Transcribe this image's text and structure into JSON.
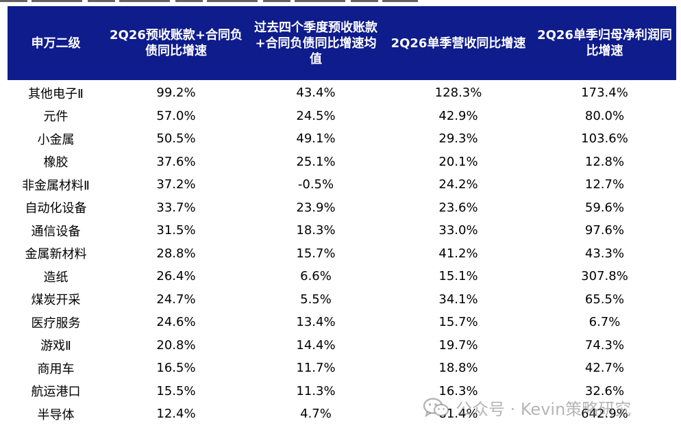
{
  "table": {
    "headers": [
      "申万二级",
      "2Q26预收账款+合同负债同比增速",
      "过去四个季度预收账款+合同负债同比增速均值",
      "2Q26单季营收同比增速",
      "2Q26单季归母净利润同比增速"
    ],
    "rows": [
      [
        "其他电子Ⅱ",
        "99.2%",
        "43.4%",
        "128.3%",
        "173.4%"
      ],
      [
        "元件",
        "57.0%",
        "24.5%",
        "42.9%",
        "80.0%"
      ],
      [
        "小金属",
        "50.5%",
        "49.1%",
        "29.3%",
        "103.6%"
      ],
      [
        "橡胶",
        "37.6%",
        "25.1%",
        "20.1%",
        "12.8%"
      ],
      [
        "非金属材料Ⅱ",
        "37.2%",
        "-0.5%",
        "24.2%",
        "12.7%"
      ],
      [
        "自动化设备",
        "33.7%",
        "23.9%",
        "23.6%",
        "59.6%"
      ],
      [
        "通信设备",
        "31.5%",
        "18.3%",
        "33.0%",
        "97.6%"
      ],
      [
        "金属新材料",
        "28.8%",
        "15.7%",
        "41.2%",
        "43.3%"
      ],
      [
        "造纸",
        "26.4%",
        "6.6%",
        "15.1%",
        "307.8%"
      ],
      [
        "煤炭开采",
        "24.7%",
        "5.5%",
        "34.1%",
        "65.5%"
      ],
      [
        "医疗服务",
        "24.6%",
        "13.4%",
        "15.7%",
        "6.7%"
      ],
      [
        "游戏Ⅱ",
        "20.8%",
        "14.4%",
        "19.7%",
        "74.3%"
      ],
      [
        "商用车",
        "16.5%",
        "11.7%",
        "18.8%",
        "42.7%"
      ],
      [
        "航运港口",
        "15.5%",
        "11.3%",
        "16.3%",
        "32.6%"
      ],
      [
        "半导体",
        "12.4%",
        "4.7%",
        "81.4%",
        "642.9%"
      ]
    ]
  },
  "watermark": {
    "text": "公众号 · Kevin策略研究",
    "icon": "wechat-icon"
  },
  "colors": {
    "header_background": "#0f1c8c",
    "header_text": "#ffffff",
    "body_text": "#000000",
    "watermark": "#8a8a8a"
  }
}
